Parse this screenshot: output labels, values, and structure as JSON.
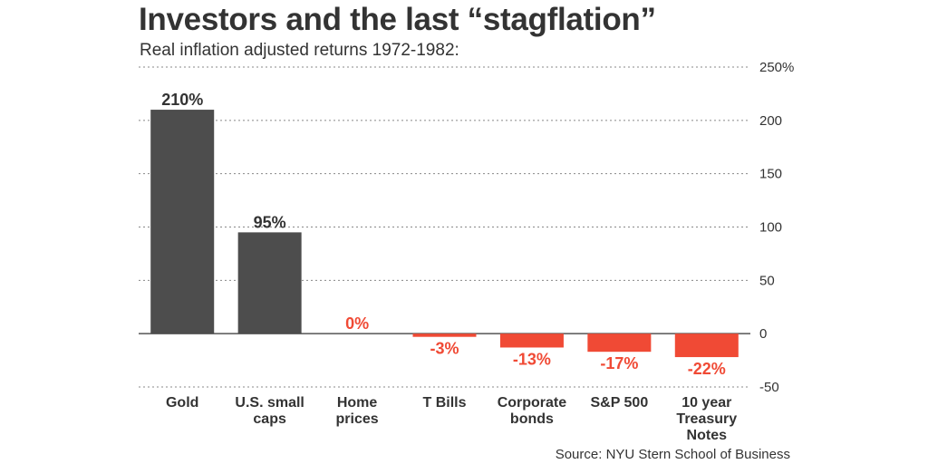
{
  "chart_data": {
    "type": "bar",
    "title": "Investors and the last “stagflation”",
    "subtitle": "Real inflation adjusted returns 1972-1982:",
    "source": "Source: NYU Stern School of Business",
    "xlabel": "",
    "ylabel": "",
    "ylim": [
      -50,
      250
    ],
    "yticks": [
      -50,
      0,
      50,
      100,
      150,
      200,
      250
    ],
    "ytick_labels": [
      "-50",
      "0",
      "50",
      "100",
      "150",
      "200",
      "250%"
    ],
    "grid": true,
    "categories": [
      [
        "Gold"
      ],
      [
        "U.S. small",
        "caps"
      ],
      [
        "Home",
        "prices"
      ],
      [
        "T Bills"
      ],
      [
        "Corporate",
        "bonds"
      ],
      [
        "S&P 500"
      ],
      [
        "10 year",
        "Treasury",
        "Notes"
      ]
    ],
    "values": [
      210,
      95,
      0,
      -3,
      -13,
      -17,
      -22
    ],
    "data_labels": [
      "210%",
      "95%",
      "0%",
      "-3%",
      "-13%",
      "-17%",
      "-22%"
    ],
    "colors": {
      "positive": "#4d4d4d",
      "negative": "#f04a35",
      "text": "#333333",
      "grid": "#888888"
    }
  }
}
